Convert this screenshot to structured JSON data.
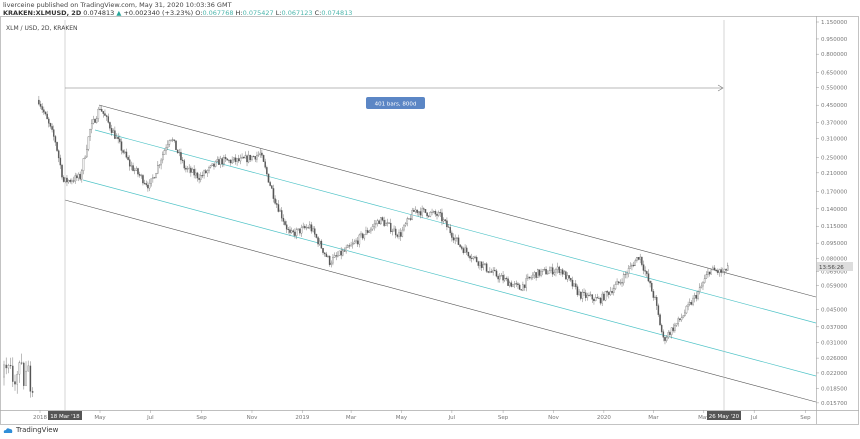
{
  "header": {
    "published": "liverceine published on TradingView.com, May 31, 2020 10:03:36 GMT",
    "symbol": "KRAKEN:XLMUSD, 2D",
    "last": "0.074813",
    "change": "+0.002340 (+3.23%)",
    "open_label": "O:",
    "open": "0.067768",
    "high_label": "H:",
    "high": "0.075427",
    "low_label": "L:",
    "low": "0.067123",
    "close_label": "C:",
    "close": "0.074813"
  },
  "footer": {
    "brand": "TradingView"
  },
  "chart_data": {
    "type": "candlestick",
    "title": "XLM / USD, 2D, KRAKEN",
    "yscale": "log",
    "ylim": [
      0.0157,
      1.15
    ],
    "xlim": [
      "2018-01-01",
      "2020-09-30"
    ],
    "grid": false,
    "price_ticks": [
      1.15,
      0.95,
      0.8,
      0.65,
      0.55,
      0.45,
      0.37,
      0.31,
      0.25,
      0.21,
      0.17,
      0.14,
      0.115,
      0.095,
      0.08,
      0.069,
      0.059,
      0.045,
      0.037,
      0.031,
      0.026,
      0.022,
      0.0185,
      0.0157
    ],
    "price_tick_labels": [
      "1.150000",
      "0.950000",
      "0.800000",
      "0.650000",
      "0.550000",
      "0.450000",
      "0.370000",
      "0.310000",
      "0.250000",
      "0.210000",
      "0.170000",
      "0.140000",
      "0.115000",
      "0.095000",
      "0.080000",
      "0.069000",
      "0.059000",
      "0.045000",
      "0.037000",
      "0.031000",
      "0.026000",
      "0.022000",
      "0.018500",
      "0.015700"
    ],
    "time_ticks": [
      {
        "label": "2018",
        "date": "2018-01-01"
      },
      {
        "label": "May",
        "date": "2018-05-01"
      },
      {
        "label": "Jul",
        "date": "2018-07-01"
      },
      {
        "label": "Sep",
        "date": "2018-09-01"
      },
      {
        "label": "Nov",
        "date": "2018-11-01"
      },
      {
        "label": "2019",
        "date": "2019-01-01"
      },
      {
        "label": "Mar",
        "date": "2019-03-01"
      },
      {
        "label": "May",
        "date": "2019-05-01"
      },
      {
        "label": "Jul",
        "date": "2019-07-01"
      },
      {
        "label": "Sep",
        "date": "2019-09-01"
      },
      {
        "label": "Nov",
        "date": "2019-11-01"
      },
      {
        "label": "2020",
        "date": "2020-01-01"
      },
      {
        "label": "Mar",
        "date": "2020-03-01"
      },
      {
        "label": "May",
        "date": "2020-05-01"
      },
      {
        "label": "Jul",
        "date": "2020-07-01"
      },
      {
        "label": "Sep",
        "date": "2020-09-01"
      }
    ],
    "close_path": [
      [
        "2018-02-16",
        0.477
      ],
      [
        "2018-03-08",
        0.3
      ],
      [
        "2018-03-18",
        0.19
      ],
      [
        "2018-04-07",
        0.2
      ],
      [
        "2018-04-19",
        0.34
      ],
      [
        "2018-05-01",
        0.44
      ],
      [
        "2018-05-19",
        0.32
      ],
      [
        "2018-06-06",
        0.23
      ],
      [
        "2018-06-30",
        0.18
      ],
      [
        "2018-07-25",
        0.32
      ],
      [
        "2018-08-12",
        0.22
      ],
      [
        "2018-08-30",
        0.2
      ],
      [
        "2018-09-23",
        0.24
      ],
      [
        "2018-10-18",
        0.24
      ],
      [
        "2018-11-11",
        0.26
      ],
      [
        "2018-11-29",
        0.155
      ],
      [
        "2018-12-17",
        0.104
      ],
      [
        "2019-01-10",
        0.115
      ],
      [
        "2019-02-03",
        0.077
      ],
      [
        "2019-02-27",
        0.09
      ],
      [
        "2019-04-05",
        0.124
      ],
      [
        "2019-04-29",
        0.104
      ],
      [
        "2019-05-17",
        0.138
      ],
      [
        "2019-06-16",
        0.13
      ],
      [
        "2019-07-11",
        0.092
      ],
      [
        "2019-08-16",
        0.069
      ],
      [
        "2019-09-21",
        0.057
      ],
      [
        "2019-10-09",
        0.067
      ],
      [
        "2019-11-09",
        0.071
      ],
      [
        "2019-12-03",
        0.053
      ],
      [
        "2019-12-27",
        0.05
      ],
      [
        "2020-01-20",
        0.061
      ],
      [
        "2020-02-13",
        0.083
      ],
      [
        "2020-03-03",
        0.05
      ],
      [
        "2020-03-13",
        0.032
      ],
      [
        "2020-04-02",
        0.04
      ],
      [
        "2020-04-26",
        0.056
      ],
      [
        "2020-05-08",
        0.07
      ],
      [
        "2020-05-26",
        0.068
      ],
      [
        "2020-05-31",
        0.074813
      ]
    ],
    "measure": {
      "label": "401 bars, 800d",
      "start_label": "18 Mar '18",
      "end_label": "26 May '20",
      "start": "2018-03-18",
      "end": "2020-05-26"
    },
    "countdown": "13:56:26",
    "colors": {
      "channel": "#555555",
      "inner_channel": "#4fc3c7",
      "measure_box": "#5b86c5",
      "candle": "#555555"
    }
  }
}
